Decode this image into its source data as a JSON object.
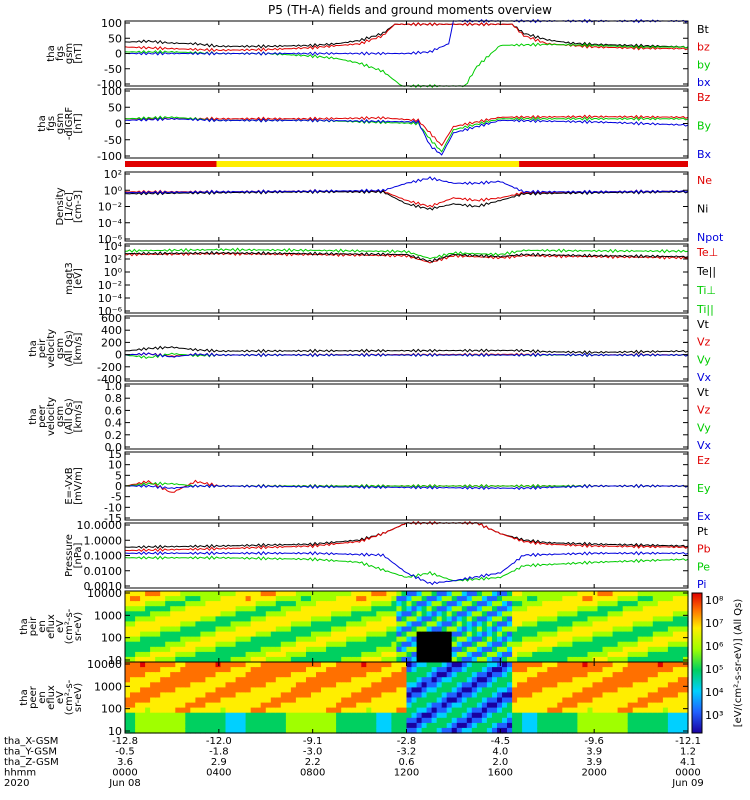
{
  "title": "P5 (TH-A) fields and ground moments overview",
  "colors": {
    "black": "#000000",
    "red": "#e00000",
    "green": "#00cc00",
    "blue": "#0000dd",
    "yellow": "#ffee00"
  },
  "panels": [
    {
      "id": "fgs",
      "ylabel": [
        "tha",
        "fgs",
        "gsm",
        "[nT]"
      ],
      "ticks": [
        "100",
        "50",
        "0",
        "-50",
        "-100"
      ],
      "legend": [
        {
          "label": "Bt",
          "color": "black"
        },
        {
          "label": "bz",
          "color": "red"
        },
        {
          "label": "by",
          "color": "green"
        },
        {
          "label": "bx",
          "color": "blue"
        }
      ]
    },
    {
      "id": "fgs_dc",
      "ylabel": [
        "tha",
        "fgs",
        "gsm",
        "-dIGRF",
        "[nT]"
      ],
      "ticks": [
        "100",
        "50",
        "0",
        "-50",
        "-100"
      ],
      "legend": [
        {
          "label": "Bz",
          "color": "red"
        },
        {
          "label": "By",
          "color": "green"
        },
        {
          "label": "Bx",
          "color": "blue"
        }
      ]
    },
    {
      "id": "density",
      "ylabel": [
        "Density",
        "[1/cc]",
        "[cm-3]"
      ],
      "ticks": [
        "10²",
        "10⁰",
        "10⁻²",
        "10⁻⁴",
        "10⁻⁶"
      ],
      "legend": [
        {
          "label": "Ne",
          "color": "red"
        },
        {
          "label": "Ni",
          "color": "black"
        },
        {
          "label": "Npot",
          "color": "blue"
        }
      ]
    },
    {
      "id": "temp",
      "ylabel": [
        "magt3",
        "[eV]"
      ],
      "ticks": [
        "10⁴",
        "10²",
        "10⁰",
        "10⁻²",
        "10⁻⁴",
        "10⁻⁶"
      ],
      "legend": [
        {
          "label": "Te⊥",
          "color": "red"
        },
        {
          "label": "Te||",
          "color": "black"
        },
        {
          "label": "Ti⊥",
          "color": "green"
        },
        {
          "label": "Ti||",
          "color": "green"
        }
      ]
    },
    {
      "id": "ivel",
      "ylabel": [
        "tha",
        "peir",
        "velocity",
        "gsm",
        "(All Qs)",
        "[km/s]"
      ],
      "ticks": [
        "600",
        "400",
        "200",
        "0",
        "-200",
        "-400"
      ],
      "legend": [
        {
          "label": "Vt",
          "color": "black"
        },
        {
          "label": "Vz",
          "color": "red"
        },
        {
          "label": "Vy",
          "color": "green"
        },
        {
          "label": "Vx",
          "color": "blue"
        }
      ]
    },
    {
      "id": "evel",
      "ylabel": [
        "tha",
        "peer",
        "velocity",
        "gsm",
        "(All Qs)",
        "[km/s]"
      ],
      "ticks": [
        "1.0",
        "0.8",
        "0.6",
        "0.4",
        "0.2",
        "0.0"
      ],
      "legend": [
        {
          "label": "Vt",
          "color": "black"
        },
        {
          "label": "Vz",
          "color": "red"
        },
        {
          "label": "Vy",
          "color": "green"
        },
        {
          "label": "Vx",
          "color": "blue"
        }
      ]
    },
    {
      "id": "efield",
      "ylabel": [
        "E=-VxB",
        "[mV/m]"
      ],
      "ticks": [
        "15",
        "10",
        "5",
        "0",
        "-5",
        "-10",
        "-15"
      ],
      "legend": [
        {
          "label": "Ez",
          "color": "red"
        },
        {
          "label": "Ey",
          "color": "green"
        },
        {
          "label": "Ex",
          "color": "blue"
        }
      ]
    },
    {
      "id": "pressure",
      "ylabel": [
        "Pressure",
        "[nPa]"
      ],
      "ticks": [
        "10.0000",
        "1.0000",
        "0.1000",
        "0.0100",
        "0.0010"
      ],
      "legend": [
        {
          "label": "Pt",
          "color": "black"
        },
        {
          "label": "Pb",
          "color": "red"
        },
        {
          "label": "Pe",
          "color": "green"
        },
        {
          "label": "Pi",
          "color": "blue"
        }
      ]
    },
    {
      "id": "ispec",
      "ylabel": [
        "tha",
        "peir",
        "en",
        "eflux",
        "eV",
        "(cm²-s-",
        "sr-eV)"
      ],
      "ticks": [
        "10000",
        "1000",
        "100",
        "10"
      ]
    },
    {
      "id": "espec",
      "ylabel": [
        "tha",
        "peer",
        "en",
        "eflux",
        "eV",
        "(cm²-s-",
        "sr-eV)"
      ],
      "ticks": [
        "10000",
        "1000",
        "100",
        "10"
      ]
    }
  ],
  "colorbar": {
    "label": "[eV/(cm²-s-sr-eV)] (All Qs)",
    "ticks": [
      "10⁸",
      "10⁷",
      "10⁶",
      "10⁵",
      "10⁴",
      "10³"
    ]
  },
  "xaxis": {
    "rows": [
      {
        "label": "tha_X-GSM",
        "values": [
          "-12.8",
          "-12.0",
          "-9.1",
          "-2.8",
          "-4.5",
          "-9.6",
          "-12.1"
        ]
      },
      {
        "label": "tha_Y-GSM",
        "values": [
          "-0.5",
          "-1.8",
          "-3.0",
          "-3.2",
          "4.0",
          "3.9",
          "1.2"
        ]
      },
      {
        "label": "tha_Z-GSM",
        "values": [
          "3.6",
          "2.9",
          "2.2",
          "0.6",
          "2.0",
          "3.9",
          "4.1"
        ]
      },
      {
        "label": "hhmm",
        "values": [
          "0000",
          "0400",
          "0800",
          "1200",
          "1600",
          "2000",
          "0000"
        ]
      },
      {
        "label": "2020",
        "values": [
          "Jun 08",
          "",
          "",
          "",
          "",
          "",
          "Jun 09"
        ]
      }
    ]
  },
  "chart_data": {
    "type": "line",
    "title": "P5 (TH-A) fields and ground moments overview",
    "x_ticks_hhmm": [
      "0000",
      "0400",
      "0800",
      "1200",
      "1600",
      "2000",
      "0000"
    ],
    "x_range_hours": [
      0,
      24
    ],
    "panels": [
      {
        "name": "fgs",
        "ylim": [
          -100,
          100
        ],
        "series": [
          {
            "name": "Bt",
            "x": [
              0,
              1,
              2,
              3,
              4,
              6,
              8,
              9,
              10,
              11,
              11.5,
              16.5,
              17,
              18,
              19,
              20,
              22,
              24
            ],
            "y": [
              35,
              38,
              32,
              30,
              22,
              22,
              25,
              30,
              40,
              62,
              90,
              90,
              62,
              42,
              32,
              28,
              24,
              20
            ]
          },
          {
            "name": "bz",
            "x": [
              0,
              2,
              4,
              6,
              8,
              10,
              11,
              11.5,
              16.5,
              17,
              18,
              20,
              22,
              24
            ],
            "y": [
              20,
              15,
              10,
              12,
              18,
              30,
              55,
              90,
              90,
              55,
              30,
              20,
              16,
              15
            ]
          },
          {
            "name": "by",
            "x": [
              0,
              2,
              4,
              6,
              8,
              9,
              10,
              11,
              11.8,
              14.5,
              15,
              16,
              18,
              20,
              22,
              24
            ],
            "y": [
              5,
              5,
              0,
              0,
              -8,
              -15,
              -30,
              -55,
              -100,
              -100,
              -40,
              25,
              28,
              25,
              20,
              20
            ]
          },
          {
            "name": "bx",
            "x": [
              0,
              4,
              8,
              12,
              13,
              13.8,
              14,
              15,
              18,
              22,
              24
            ],
            "y": [
              0,
              0,
              0,
              0,
              5,
              30,
              100,
              100,
              100,
              100,
              100
            ]
          }
        ]
      },
      {
        "name": "fgs-dIGRF",
        "ylim": [
          -120,
          100
        ],
        "series": [
          {
            "name": "Bz",
            "x": [
              0,
              4,
              8,
              11,
              12.5,
              13,
              13.5,
              14,
              16,
              20,
              24
            ],
            "y": [
              5,
              5,
              5,
              8,
              0,
              -40,
              -80,
              -20,
              10,
              12,
              10
            ]
          },
          {
            "name": "By",
            "x": [
              0,
              2,
              4,
              8,
              12.5,
              13,
              13.5,
              14,
              16,
              20,
              24
            ],
            "y": [
              5,
              10,
              0,
              0,
              -10,
              -60,
              -100,
              -30,
              5,
              5,
              5
            ]
          },
          {
            "name": "Bx",
            "x": [
              0,
              2,
              4,
              8,
              12.5,
              13,
              13.5,
              14,
              16,
              20,
              24
            ],
            "y": [
              0,
              5,
              0,
              0,
              -5,
              -80,
              -110,
              -40,
              0,
              -5,
              -15
            ]
          }
        ]
      },
      {
        "name": "Density",
        "scale": "log",
        "ylim": [
          1e-06,
          100
        ],
        "series": [
          {
            "name": "Ne",
            "x": [
              0,
              4,
              8,
              11,
              12,
              13,
              14,
              15,
              16,
              17,
              20,
              24
            ],
            "y": [
              0.5,
              0.5,
              0.6,
              0.6,
              0.05,
              0.01,
              0.1,
              0.05,
              0.1,
              0.4,
              0.5,
              0.6
            ]
          },
          {
            "name": "Ni",
            "x": [
              0,
              4,
              8,
              11,
              12,
              13,
              14,
              15,
              16,
              17,
              20,
              24
            ],
            "y": [
              0.3,
              0.4,
              0.5,
              0.5,
              0.02,
              0.005,
              0.02,
              0.01,
              0.05,
              0.3,
              0.4,
              0.5
            ]
          },
          {
            "name": "Npot",
            "x": [
              0,
              4,
              8,
              11,
              12,
              13,
              14,
              15,
              16,
              17,
              20,
              24
            ],
            "y": [
              0.4,
              0.5,
              0.6,
              0.7,
              5,
              20,
              5,
              5,
              8,
              0.5,
              0.5,
              0.6
            ]
          }
        ]
      },
      {
        "name": "magt3",
        "scale": "log",
        "ylim": [
          1e-06,
          10000
        ],
        "series": [
          {
            "name": "Te⊥",
            "x": [
              0,
              4,
              8,
              12,
              13,
              14,
              16,
              17,
              20,
              24
            ],
            "y": [
              300,
              400,
              300,
              200,
              20,
              200,
              100,
              200,
              150,
              100
            ]
          },
          {
            "name": "Te||",
            "x": [
              0,
              4,
              8,
              12,
              13,
              14,
              16,
              17,
              20,
              24
            ],
            "y": [
              400,
              500,
              400,
              300,
              30,
              300,
              150,
              300,
              200,
              150
            ]
          },
          {
            "name": "Ti⊥",
            "x": [
              0,
              4,
              8,
              12,
              13,
              14,
              16,
              17,
              20,
              24
            ],
            "y": [
              1000,
              1500,
              1200,
              800,
              80,
              500,
              300,
              1200,
              1000,
              900
            ]
          }
        ]
      },
      {
        "name": "peir velocity",
        "ylim": [
          -400,
          600
        ],
        "series": [
          {
            "name": "Vt",
            "x": [
              0,
              1,
              2,
              3,
              4,
              16.8,
              18,
              20,
              22,
              24
            ],
            "y": [
              60,
              100,
              120,
              80,
              60,
              70,
              50,
              40,
              50,
              60
            ]
          },
          {
            "name": "Vz",
            "x": [
              0,
              1,
              2,
              3,
              4,
              16.8,
              18,
              20,
              22,
              24
            ],
            "y": [
              0,
              20,
              -20,
              10,
              0,
              10,
              5,
              0,
              5,
              0
            ]
          },
          {
            "name": "Vy",
            "x": [
              0,
              1,
              2,
              3,
              4,
              16.8,
              18,
              20,
              22,
              24
            ],
            "y": [
              0,
              -40,
              20,
              -10,
              0,
              0,
              0,
              0,
              0,
              0
            ]
          },
          {
            "name": "Vx",
            "x": [
              0,
              1,
              2,
              3,
              4,
              16.8,
              18,
              20,
              22,
              24
            ],
            "y": [
              0,
              20,
              -30,
              10,
              0,
              0,
              5,
              0,
              0,
              0
            ]
          }
        ]
      },
      {
        "name": "peer velocity",
        "ylim": [
          0,
          1
        ],
        "series": []
      },
      {
        "name": "E=-VxB",
        "ylim": [
          -15,
          15
        ],
        "series": [
          {
            "name": "Ez",
            "x": [
              0,
              1,
              2,
              3,
              4,
              16.8,
              20,
              24
            ],
            "y": [
              0,
              2,
              -3,
              2,
              0,
              0,
              0,
              0
            ]
          },
          {
            "name": "Ey",
            "x": [
              0,
              1,
              2,
              3,
              4,
              16.8,
              20,
              24
            ],
            "y": [
              0,
              1,
              1,
              0,
              0,
              0,
              0,
              0
            ]
          },
          {
            "name": "Ex",
            "x": [
              0,
              1,
              2,
              3,
              4,
              16.8,
              20,
              24
            ],
            "y": [
              0,
              0,
              -1,
              0,
              0,
              -1,
              0,
              0
            ]
          }
        ]
      },
      {
        "name": "Pressure",
        "scale": "log",
        "ylim": [
          0.001,
          20
        ],
        "series": [
          {
            "name": "Pt",
            "x": [
              0,
              4,
              8,
              10,
              11,
              12,
              15,
              16,
              17,
              18,
              20,
              24
            ],
            "y": [
              0.5,
              0.6,
              0.8,
              1.5,
              4,
              20,
              20,
              4,
              1.5,
              1,
              0.8,
              0.6
            ]
          },
          {
            "name": "Pb",
            "x": [
              0,
              4,
              8,
              10,
              11,
              12,
              15,
              16,
              17,
              18,
              20,
              24
            ],
            "y": [
              0.3,
              0.4,
              0.6,
              1.2,
              4,
              20,
              20,
              4,
              1.2,
              0.8,
              0.6,
              0.5
            ]
          },
          {
            "name": "Pe",
            "x": [
              0,
              4,
              8,
              10,
              12,
              13,
              14,
              16,
              17,
              20,
              24
            ],
            "y": [
              0.1,
              0.1,
              0.08,
              0.05,
              0.005,
              0.01,
              0.003,
              0.005,
              0.03,
              0.05,
              0.08
            ]
          },
          {
            "name": "Pi",
            "x": [
              0,
              4,
              8,
              11,
              12,
              13,
              14,
              16,
              17,
              20,
              24
            ],
            "y": [
              0.2,
              0.2,
              0.2,
              0.15,
              0.01,
              0.002,
              0.003,
              0.01,
              0.15,
              0.2,
              0.2
            ]
          }
        ]
      }
    ]
  }
}
